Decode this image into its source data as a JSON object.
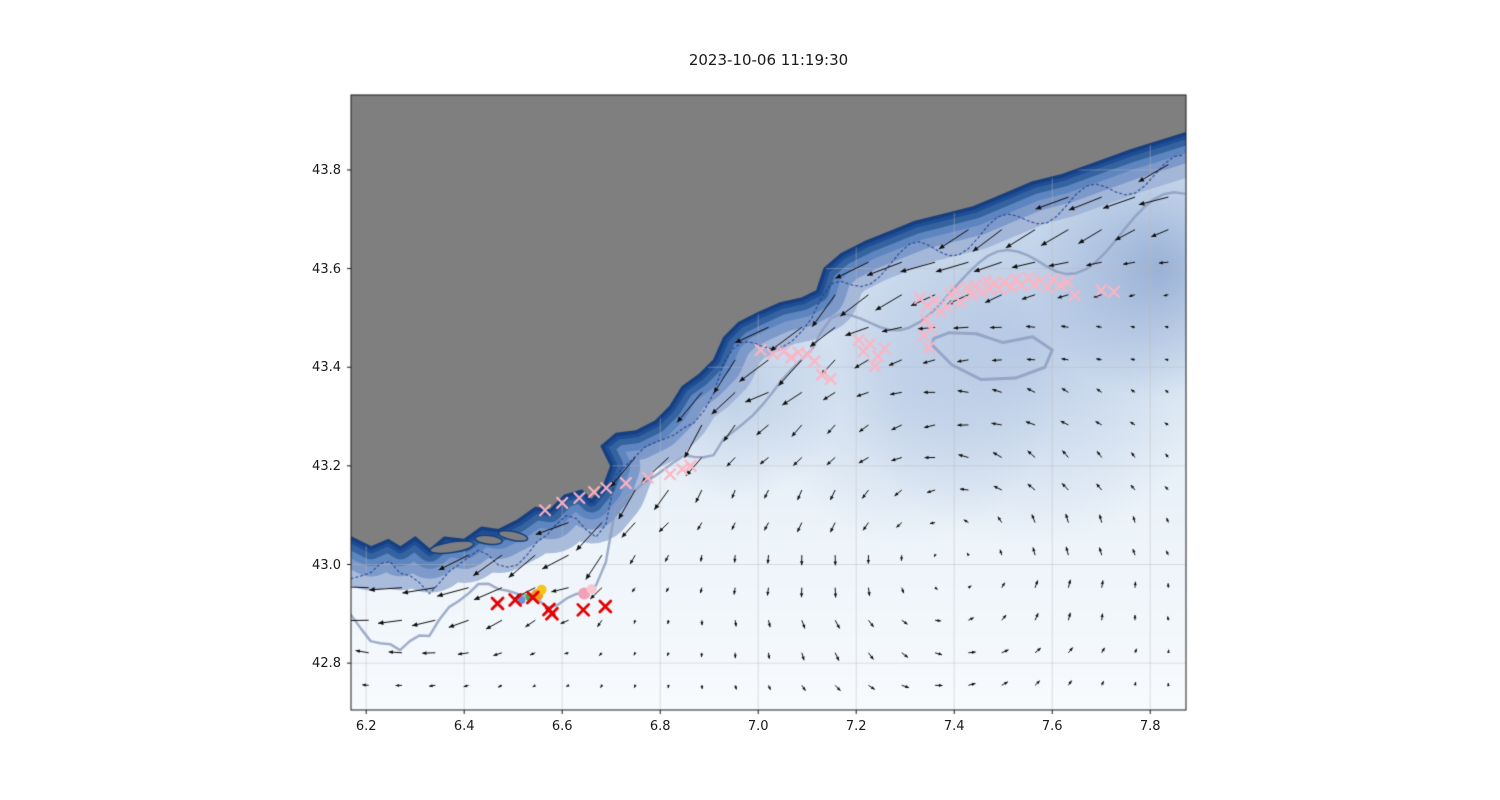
{
  "title": "2023-10-06 11:19:30",
  "colors": {
    "land": "#7f7f7f",
    "land_edge": "#16407f",
    "ocean_top": "#c9dbee",
    "ocean_mid": "#e4eef7",
    "ocean_bottom": "#f8fbfe",
    "slope_band1": "rgba(158,178,214,0.85)",
    "slope_band2": "rgba(120,150,200,0.9)",
    "slope_band3": "#5d85c0",
    "slope_band4": "#35639f",
    "slope_band5": "#1f4e96",
    "slope_band6": "#163f85",
    "contour_gray": "rgba(140,155,190,0.8)",
    "contour_navy": "rgba(30,60,140,0.75)",
    "grid": "rgba(185,185,185,0.55)",
    "frame": "#1a1a1a",
    "arrow": "#0d0d0d",
    "pink_marker": "#ffb3c1",
    "red_marker": "#e60000"
  },
  "chart_data": {
    "type": "scatter",
    "title": "2023-10-06 11:19:30",
    "xlabel": "",
    "ylabel": "",
    "xlim": [
      6.169,
      7.873
    ],
    "ylim": [
      42.705,
      43.952
    ],
    "x_tick_values": [
      6.2,
      6.4,
      6.6,
      6.8,
      7.0,
      7.2,
      7.4,
      7.6,
      7.8
    ],
    "x_tick_labels": [
      "6.2",
      "6.4",
      "6.6",
      "6.8",
      "7.0",
      "7.2",
      "7.4",
      "7.6",
      "7.8"
    ],
    "y_tick_values": [
      42.8,
      43.0,
      43.2,
      43.4,
      43.6,
      43.8
    ],
    "y_tick_labels": [
      "42.8",
      "43.0",
      "43.2",
      "43.4",
      "43.6",
      "43.8"
    ],
    "grid": true,
    "background": "Coastal bathymetry map (NW Mediterranean, Cote d'Azur ~6.2-7.8E / 42.8-43.9N): gray land mask upper-left, dark blue continental slope hugging the coast, pale blue open sea, bathymetry contours, black surface-current quiver arrows over the sea",
    "series": [
      {
        "name": "pink-cross-observations",
        "marker": "x",
        "color": "#ffb3c1",
        "points": [
          [
            6.565,
            43.11
          ],
          [
            6.6,
            43.125
          ],
          [
            6.635,
            43.135
          ],
          [
            6.665,
            43.147
          ],
          [
            6.69,
            43.155
          ],
          [
            6.73,
            43.165
          ],
          [
            6.775,
            43.176
          ],
          [
            6.82,
            43.183
          ],
          [
            6.845,
            43.193
          ],
          [
            6.862,
            43.2
          ],
          [
            7.005,
            43.435
          ],
          [
            7.03,
            43.427
          ],
          [
            7.052,
            43.432
          ],
          [
            7.068,
            43.42
          ],
          [
            7.082,
            43.43
          ],
          [
            7.1,
            43.426
          ],
          [
            7.115,
            43.412
          ],
          [
            7.13,
            43.385
          ],
          [
            7.148,
            43.376
          ],
          [
            7.205,
            43.455
          ],
          [
            7.215,
            43.432
          ],
          [
            7.228,
            43.447
          ],
          [
            7.238,
            43.402
          ],
          [
            7.245,
            43.422
          ],
          [
            7.258,
            43.438
          ],
          [
            7.33,
            43.54
          ],
          [
            7.345,
            43.525
          ],
          [
            7.342,
            43.497
          ],
          [
            7.352,
            43.478
          ],
          [
            7.348,
            43.44
          ],
          [
            7.338,
            43.465
          ],
          [
            7.36,
            43.536
          ],
          [
            7.372,
            43.512
          ],
          [
            7.385,
            43.523
          ],
          [
            7.392,
            43.548
          ],
          [
            7.403,
            43.556
          ],
          [
            7.413,
            43.532
          ],
          [
            7.426,
            43.561
          ],
          [
            7.436,
            43.546
          ],
          [
            7.443,
            43.566
          ],
          [
            7.456,
            43.552
          ],
          [
            7.465,
            43.576
          ],
          [
            7.472,
            43.557
          ],
          [
            7.482,
            43.571
          ],
          [
            7.492,
            43.559
          ],
          [
            7.502,
            43.573
          ],
          [
            7.516,
            43.562
          ],
          [
            7.526,
            43.579
          ],
          [
            7.537,
            43.566
          ],
          [
            7.551,
            43.581
          ],
          [
            7.562,
            43.569
          ],
          [
            7.576,
            43.576
          ],
          [
            7.59,
            43.562
          ],
          [
            7.602,
            43.579
          ],
          [
            7.616,
            43.566
          ],
          [
            7.631,
            43.573
          ],
          [
            7.646,
            43.546
          ],
          [
            7.7,
            43.556
          ],
          [
            7.726,
            43.553
          ]
        ]
      },
      {
        "name": "red-cross-observations",
        "marker": "x",
        "color": "#e60000",
        "points": [
          [
            6.468,
            42.921
          ],
          [
            6.504,
            42.928
          ],
          [
            6.54,
            42.933
          ],
          [
            6.573,
            42.909
          ],
          [
            6.579,
            42.9
          ],
          [
            6.643,
            42.908
          ],
          [
            6.688,
            42.915
          ]
        ]
      },
      {
        "name": "colored-dot-markers",
        "marker": "o",
        "points": [
          {
            "lon": 6.517,
            "lat": 42.928,
            "color": "#6f8fd8",
            "r": 4
          },
          {
            "lon": 6.533,
            "lat": 42.934,
            "color": "#3fae4c",
            "r": 4
          },
          {
            "lon": 6.549,
            "lat": 42.938,
            "color": "#f59a23",
            "r": 6
          },
          {
            "lon": 6.558,
            "lat": 42.949,
            "color": "#f5c518",
            "r": 5
          },
          {
            "lon": 6.645,
            "lat": 42.941,
            "color": "#f2a0b5",
            "r": 6
          },
          {
            "lon": 6.66,
            "lat": 42.95,
            "color": "#f7c6d2",
            "r": 5
          }
        ]
      }
    ],
    "quiver": {
      "description": "Black surface current vectors on a regular grid over the sea; strong southwestward flow along the continental slope, weak cyclonic circulation offshore to the southeast",
      "lon_range": [
        6.205,
        7.865
      ],
      "lat_range": [
        42.755,
        43.9
      ],
      "lon_step": 0.068,
      "lat_step": 0.066
    },
    "coastline": [
      [
        6.17,
        43.055
      ],
      [
        6.21,
        43.035
      ],
      [
        6.245,
        43.05
      ],
      [
        6.27,
        43.035
      ],
      [
        6.3,
        43.055
      ],
      [
        6.33,
        43.03
      ],
      [
        6.36,
        43.055
      ],
      [
        6.4,
        43.05
      ],
      [
        6.435,
        43.075
      ],
      [
        6.47,
        43.07
      ],
      [
        6.51,
        43.09
      ],
      [
        6.545,
        43.115
      ],
      [
        6.575,
        43.11
      ],
      [
        6.605,
        43.14
      ],
      [
        6.64,
        43.15
      ],
      [
        6.66,
        43.13
      ],
      [
        6.685,
        43.16
      ],
      [
        6.7,
        43.2
      ],
      [
        6.68,
        43.24
      ],
      [
        6.71,
        43.265
      ],
      [
        6.75,
        43.27
      ],
      [
        6.79,
        43.29
      ],
      [
        6.82,
        43.32
      ],
      [
        6.845,
        43.36
      ],
      [
        6.88,
        43.385
      ],
      [
        6.91,
        43.415
      ],
      [
        6.93,
        43.46
      ],
      [
        6.96,
        43.49
      ],
      [
        7.0,
        43.51
      ],
      [
        7.045,
        43.53
      ],
      [
        7.09,
        43.54
      ],
      [
        7.12,
        43.555
      ],
      [
        7.135,
        43.6
      ],
      [
        7.17,
        43.63
      ],
      [
        7.22,
        43.655
      ],
      [
        7.27,
        43.675
      ],
      [
        7.32,
        43.695
      ],
      [
        7.38,
        43.71
      ],
      [
        7.44,
        43.725
      ],
      [
        7.5,
        43.75
      ],
      [
        7.56,
        43.775
      ],
      [
        7.62,
        43.79
      ],
      [
        7.69,
        43.815
      ],
      [
        7.76,
        43.84
      ],
      [
        7.873,
        43.875
      ]
    ],
    "islands": [
      {
        "lon": 6.375,
        "lat": 43.035,
        "rx": 0.045,
        "ry": 0.011,
        "rot": -0.15
      },
      {
        "lon": 6.45,
        "lat": 43.05,
        "rx": 0.028,
        "ry": 0.009,
        "rot": 0.1
      },
      {
        "lon": 6.5,
        "lat": 43.058,
        "rx": 0.03,
        "ry": 0.009,
        "rot": 0.2
      }
    ],
    "contour_loop": [
      [
        7.355,
        43.445
      ],
      [
        7.395,
        43.405
      ],
      [
        7.455,
        43.375
      ],
      [
        7.525,
        43.378
      ],
      [
        7.585,
        43.4
      ],
      [
        7.6,
        43.435
      ],
      [
        7.56,
        43.462
      ],
      [
        7.5,
        43.45
      ],
      [
        7.445,
        43.468
      ],
      [
        7.39,
        43.47
      ],
      [
        7.358,
        43.458
      ]
    ]
  }
}
